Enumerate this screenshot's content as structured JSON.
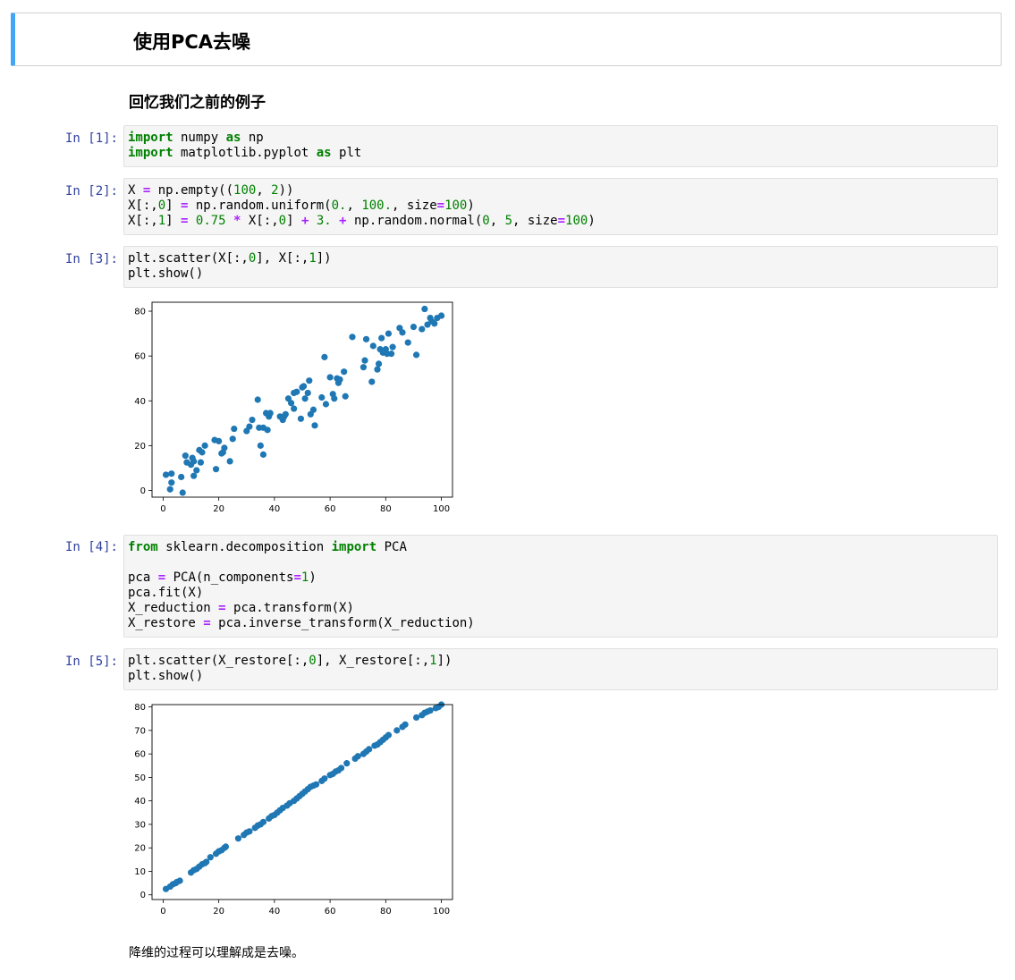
{
  "title": "使用PCA去噪",
  "subtitle": "回忆我们之前的例子",
  "cells": [
    {
      "prompt": "In [1]:"
    },
    {
      "prompt": "In [2]:"
    },
    {
      "prompt": "In [3]:"
    },
    {
      "prompt": "In [4]:"
    },
    {
      "prompt": "In [5]:"
    }
  ],
  "code": {
    "c1": {
      "l1": {
        "kw1": "import",
        "a": " numpy ",
        "kw2": "as",
        "b": " np"
      },
      "l2": {
        "kw1": "import",
        "a": " matplotlib.pyplot ",
        "kw2": "as",
        "b": " plt"
      }
    },
    "c2": {
      "l1": {
        "a": "X ",
        "op": "=",
        "b": " np.empty((",
        "n1": "100",
        "c": ", ",
        "n2": "2",
        "d": "))"
      },
      "l2": {
        "a": "X[:,",
        "n1": "0",
        "b": "] ",
        "op": "=",
        "c": " np.random.uniform(",
        "n2": "0.",
        "d": ", ",
        "n3": "100.",
        "e": ", size",
        "op2": "=",
        "n4": "100",
        "f": ")"
      },
      "l3": {
        "a": "X[:,",
        "n1": "1",
        "b": "] ",
        "op": "=",
        "c": " ",
        "n2": "0.75",
        "d": " ",
        "op2": "*",
        "e": " X[:,",
        "n3": "0",
        "f": "] ",
        "op3": "+",
        "g": " ",
        "n4": "3.",
        "h": " ",
        "op4": "+",
        "i": " np.random.normal(",
        "n5": "0",
        "j": ", ",
        "n6": "5",
        "k": ", size",
        "op5": "=",
        "n7": "100",
        "l": ")"
      }
    },
    "c3": {
      "l1": {
        "a": "plt.scatter(X[:,",
        "n1": "0",
        "b": "], X[:,",
        "n2": "1",
        "c": "])"
      },
      "l2": {
        "a": "plt.show()"
      }
    },
    "c4": {
      "l1": {
        "kw1": "from",
        "a": " sklearn.decomposition ",
        "kw2": "import",
        "b": " PCA"
      },
      "l3": {
        "a": "pca ",
        "op": "=",
        "b": " PCA(n_components",
        "op2": "=",
        "n1": "1",
        "c": ")"
      },
      "l4": {
        "a": "pca.fit(X)"
      },
      "l5": {
        "a": "X_reduction ",
        "op": "=",
        "b": " pca.transform(X)"
      },
      "l6": {
        "a": "X_restore ",
        "op": "=",
        "b": " pca.inverse_transform(X_reduction)"
      }
    },
    "c5": {
      "l1": {
        "a": "plt.scatter(X_restore[:,",
        "n1": "0",
        "b": "], X_restore[:,",
        "n2": "1",
        "c": "])"
      },
      "l2": {
        "a": "plt.show()"
      }
    }
  },
  "conclusion": "降维的过程可以理解成是去噪。",
  "chart_data": [
    {
      "type": "scatter",
      "title": "",
      "xlabel": "",
      "ylabel": "",
      "xlim": [
        -4,
        104
      ],
      "ylim": [
        -3,
        84
      ],
      "xticks": [
        0,
        20,
        40,
        60,
        80,
        100
      ],
      "yticks": [
        0,
        20,
        40,
        60,
        80
      ],
      "color": "#1f77b4",
      "x": [
        1,
        3,
        2.5,
        7,
        3,
        6.5,
        8,
        10,
        8.5,
        11,
        10.5,
        12,
        11,
        13,
        14,
        13.5,
        15,
        19,
        20,
        18.5,
        21,
        22,
        21.5,
        24,
        25,
        25.5,
        30,
        31,
        32,
        34,
        34.5,
        35,
        36,
        37,
        36,
        37.5,
        38,
        38.5,
        42,
        43,
        43.5,
        44,
        45,
        46,
        47,
        47,
        48,
        49.5,
        50,
        51,
        50.5,
        52,
        52.5,
        53,
        54,
        54.5,
        57,
        58,
        58.5,
        60,
        61,
        61.5,
        62.5,
        63,
        63.5,
        65,
        65.5,
        68,
        72,
        72.5,
        73,
        75,
        75.5,
        77,
        77.5,
        78,
        78.5,
        79,
        80,
        80.5,
        81,
        82,
        82.5,
        85,
        86,
        88,
        90,
        91,
        93,
        94,
        95,
        96,
        96.5,
        97.5,
        98.5,
        100
      ],
      "y": [
        7,
        7.5,
        0.5,
        -1,
        3.5,
        6,
        15.5,
        11.5,
        12.5,
        13,
        14.5,
        9,
        6.5,
        18,
        17,
        12.5,
        20,
        9.5,
        22,
        22.5,
        16.5,
        19,
        17,
        13,
        23,
        27.5,
        26.5,
        28.5,
        31.5,
        40.5,
        28,
        20,
        16,
        34.5,
        28,
        27,
        33,
        34.5,
        33,
        31.5,
        33,
        34,
        41,
        39,
        43.5,
        36.5,
        44,
        32,
        46,
        41,
        46.5,
        43.5,
        49,
        34,
        36,
        29,
        41.5,
        59.5,
        38.5,
        50.5,
        43,
        41,
        50,
        48,
        49.5,
        53,
        42,
        68.5,
        55,
        58,
        67.5,
        48.5,
        64.5,
        54,
        56.5,
        63,
        68,
        61.5,
        63,
        61,
        70,
        61,
        64,
        72.5,
        70.5,
        66,
        73,
        60.5,
        72,
        81,
        74,
        77,
        75.5,
        74.5,
        77,
        78
      ]
    },
    {
      "type": "scatter",
      "title": "",
      "xlabel": "",
      "ylabel": "",
      "xlim": [
        -4,
        104
      ],
      "ylim": [
        -2,
        81
      ],
      "xticks": [
        0,
        20,
        40,
        60,
        80,
        100
      ],
      "yticks": [
        0,
        10,
        20,
        30,
        40,
        50,
        60,
        70,
        80
      ],
      "color": "#1f77b4",
      "x": [
        1,
        2.5,
        3.5,
        4.5,
        5,
        6,
        10,
        11,
        12,
        13,
        14,
        15,
        15.5,
        17,
        19,
        20,
        21,
        22,
        22.5,
        27,
        29,
        30,
        31,
        33,
        34,
        35,
        36,
        38,
        39,
        40,
        41,
        42,
        43,
        44.5,
        45.5,
        47,
        48,
        49,
        50,
        51,
        52,
        53,
        54,
        55,
        57,
        58,
        60,
        61,
        62,
        63,
        64,
        66,
        69,
        70,
        72,
        73,
        74,
        76,
        77,
        78,
        79,
        80,
        81,
        84,
        86,
        87,
        91,
        93,
        94,
        95,
        96,
        98,
        99,
        100
      ],
      "y": [
        2.5,
        3.5,
        4.5,
        5,
        5.5,
        6,
        9.5,
        10.5,
        11,
        12,
        13,
        13.5,
        14,
        16,
        17.5,
        18.5,
        19,
        20,
        20.5,
        24,
        25.5,
        26.5,
        27,
        28.5,
        29.5,
        30,
        31,
        32.5,
        33.5,
        34,
        35,
        36,
        37,
        38,
        39,
        40,
        41,
        42,
        43,
        44,
        45,
        46,
        46.5,
        47,
        48.5,
        49.5,
        51,
        51.5,
        52.5,
        53,
        54,
        56,
        58,
        59,
        60,
        61,
        62,
        63.5,
        64,
        65,
        66,
        67,
        68,
        70,
        71.5,
        72.5,
        75.5,
        76.5,
        77.5,
        78,
        78.5,
        79.5,
        80,
        81
      ]
    }
  ]
}
